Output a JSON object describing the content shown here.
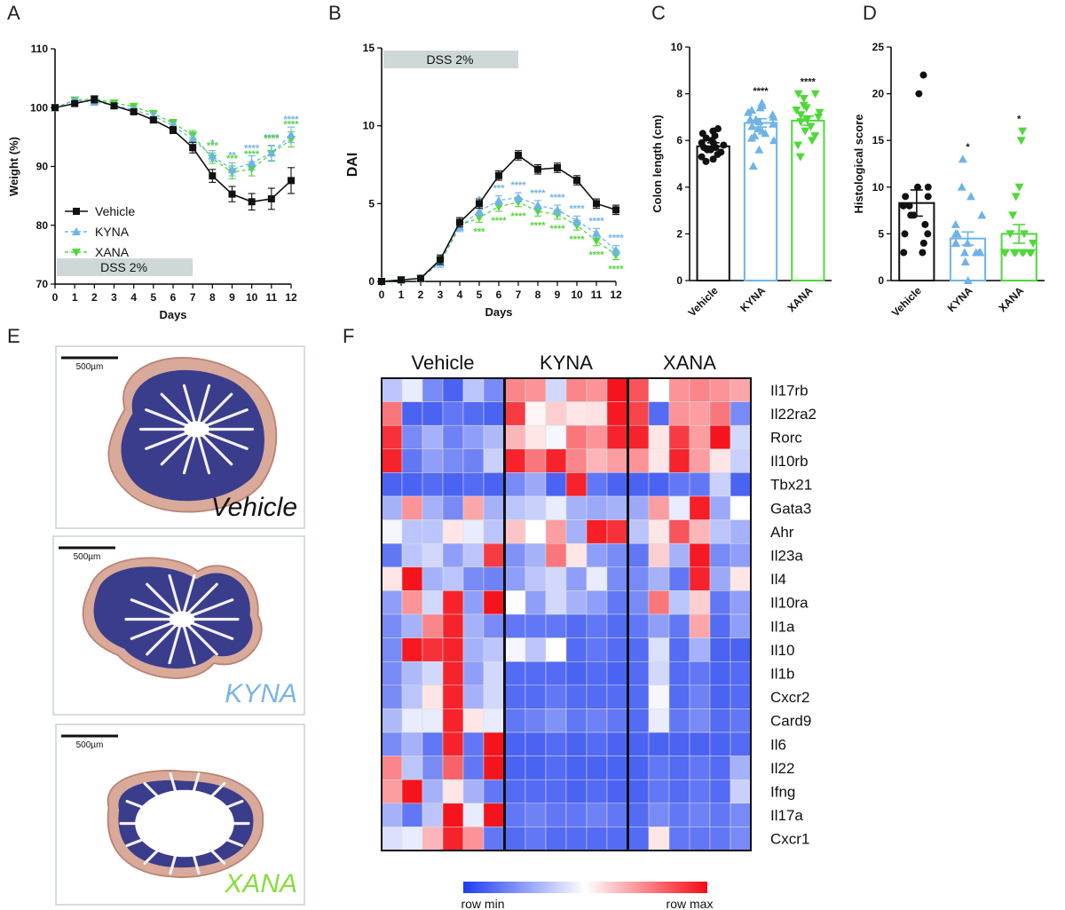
{
  "panel_labels": [
    "A",
    "B",
    "C",
    "D",
    "E",
    "F"
  ],
  "colors": {
    "vehicle": "#111111",
    "kyna": "#6fb3e8",
    "xana": "#4fd83a",
    "dss_bar": "#cfd8d8"
  },
  "chart_data": [
    {
      "panel": "A",
      "type": "line",
      "xlabel": "Days",
      "ylabel": "Weight (%)",
      "xlim": [
        0,
        12
      ],
      "ylim": [
        70,
        110
      ],
      "x_ticks": [
        0,
        1,
        2,
        3,
        4,
        5,
        6,
        7,
        8,
        9,
        10,
        11,
        12
      ],
      "y_ticks": [
        70,
        80,
        90,
        100,
        110
      ],
      "dss_label": "DSS 2%",
      "dss_range": [
        0,
        7
      ],
      "legend_position": "middle-left",
      "series": [
        {
          "name": "Vehicle",
          "marker": "square",
          "x": [
            0,
            1,
            2,
            3,
            4,
            5,
            6,
            7,
            8,
            9,
            10,
            11,
            12
          ],
          "y": [
            100,
            100.7,
            101.4,
            100.3,
            99.3,
            97.9,
            96.2,
            93.2,
            88.4,
            85.3,
            84.0,
            84.5,
            87.6
          ],
          "err": [
            0.3,
            0.4,
            0.6,
            0.4,
            0.4,
            0.5,
            0.6,
            0.9,
            1.1,
            1.3,
            1.4,
            1.8,
            2.2
          ]
        },
        {
          "name": "KYNA",
          "marker": "triangle-up",
          "x": [
            0,
            1,
            2,
            3,
            4,
            5,
            6,
            7,
            8,
            9,
            10,
            11,
            12
          ],
          "y": [
            100,
            101.2,
            101.0,
            100.4,
            99.6,
            98.6,
            96.9,
            94.6,
            91.8,
            89.5,
            90.6,
            92.3,
            95.4
          ],
          "err": [
            0.3,
            0.4,
            0.6,
            0.4,
            0.5,
            0.5,
            0.6,
            0.8,
            0.9,
            1.1,
            1.2,
            1.3,
            1.3
          ]
        },
        {
          "name": "XANA",
          "marker": "triangle-down",
          "x": [
            0,
            1,
            2,
            3,
            4,
            5,
            6,
            7,
            8,
            9,
            10,
            11,
            12
          ],
          "y": [
            100,
            101.3,
            101.5,
            100.8,
            100.2,
            99.0,
            97.4,
            95.3,
            91.4,
            89.0,
            89.6,
            92.2,
            94.6
          ],
          "err": [
            0.3,
            0.4,
            0.5,
            0.4,
            0.5,
            0.5,
            0.6,
            0.8,
            0.9,
            1.1,
            1.2,
            1.3,
            1.3
          ]
        }
      ],
      "significance": [
        {
          "series": "KYNA",
          "x": 8,
          "label": "*"
        },
        {
          "series": "KYNA",
          "x": 9,
          "label": "**"
        },
        {
          "series": "KYNA",
          "x": 10,
          "label": "****"
        },
        {
          "series": "KYNA",
          "x": 11,
          "label": "****"
        },
        {
          "series": "KYNA",
          "x": 12,
          "label": "****"
        },
        {
          "series": "XANA",
          "x": 8,
          "label": "***"
        },
        {
          "series": "XANA",
          "x": 9,
          "label": "***"
        },
        {
          "series": "XANA",
          "x": 10,
          "label": "****"
        },
        {
          "series": "XANA",
          "x": 11,
          "label": "****"
        },
        {
          "series": "XANA",
          "x": 12,
          "label": "****"
        }
      ]
    },
    {
      "panel": "B",
      "type": "line",
      "xlabel": "Days",
      "ylabel": "DAI",
      "xlim": [
        0,
        12
      ],
      "ylim": [
        0,
        15
      ],
      "x_ticks": [
        0,
        1,
        2,
        3,
        4,
        5,
        6,
        7,
        8,
        9,
        10,
        11,
        12
      ],
      "y_ticks": [
        0,
        5,
        10,
        15
      ],
      "dss_label": "DSS 2%",
      "dss_range": [
        0,
        7
      ],
      "series": [
        {
          "name": "Vehicle",
          "marker": "square",
          "x": [
            0,
            1,
            2,
            3,
            4,
            5,
            6,
            7,
            8,
            9,
            10,
            11,
            12
          ],
          "y": [
            0,
            0.1,
            0.2,
            1.4,
            3.8,
            5.0,
            6.8,
            8.1,
            7.2,
            7.3,
            6.5,
            5.0,
            4.6
          ],
          "err": [
            0,
            0.05,
            0.1,
            0.3,
            0.3,
            0.3,
            0.3,
            0.3,
            0.3,
            0.3,
            0.3,
            0.3,
            0.3
          ]
        },
        {
          "name": "KYNA",
          "marker": "triangle-up",
          "x": [
            0,
            1,
            2,
            3,
            4,
            5,
            6,
            7,
            8,
            9,
            10,
            11,
            12
          ],
          "y": [
            0,
            0.1,
            0.2,
            1.2,
            3.5,
            4.5,
            5.2,
            5.4,
            4.9,
            4.6,
            3.9,
            3.1,
            2.0
          ],
          "err": [
            0,
            0.05,
            0.1,
            0.3,
            0.3,
            0.3,
            0.3,
            0.3,
            0.3,
            0.3,
            0.3,
            0.3,
            0.3
          ]
        },
        {
          "name": "XANA",
          "marker": "triangle-down",
          "x": [
            0,
            1,
            2,
            3,
            4,
            5,
            6,
            7,
            8,
            9,
            10,
            11,
            12
          ],
          "y": [
            0,
            0.1,
            0.2,
            1.3,
            3.6,
            4.1,
            4.8,
            5.1,
            4.5,
            4.3,
            3.6,
            2.6,
            1.7
          ],
          "err": [
            0,
            0.05,
            0.1,
            0.3,
            0.3,
            0.3,
            0.3,
            0.3,
            0.3,
            0.3,
            0.3,
            0.3,
            0.3
          ]
        }
      ],
      "significance": [
        {
          "series": "KYNA",
          "x": 5,
          "label": "*"
        },
        {
          "series": "KYNA",
          "x": 6,
          "label": "***"
        },
        {
          "series": "KYNA",
          "x": 7,
          "label": "****"
        },
        {
          "series": "KYNA",
          "x": 8,
          "label": "****"
        },
        {
          "series": "KYNA",
          "x": 9,
          "label": "****"
        },
        {
          "series": "KYNA",
          "x": 10,
          "label": "****"
        },
        {
          "series": "KYNA",
          "x": 11,
          "label": "****"
        },
        {
          "series": "KYNA",
          "x": 12,
          "label": "****"
        },
        {
          "series": "XANA",
          "x": 5,
          "label": "***"
        },
        {
          "series": "XANA",
          "x": 6,
          "label": "****"
        },
        {
          "series": "XANA",
          "x": 7,
          "label": "****"
        },
        {
          "series": "XANA",
          "x": 8,
          "label": "****"
        },
        {
          "series": "XANA",
          "x": 9,
          "label": "****"
        },
        {
          "series": "XANA",
          "x": 10,
          "label": "****"
        },
        {
          "series": "XANA",
          "x": 11,
          "label": "****"
        },
        {
          "series": "XANA",
          "x": 12,
          "label": "****"
        }
      ]
    },
    {
      "panel": "C",
      "type": "bar",
      "ylabel": "Colon length (cm)",
      "ylim": [
        0,
        10
      ],
      "y_ticks": [
        0,
        2,
        4,
        6,
        8,
        10
      ],
      "categories": [
        "Vehicle",
        "KYNA",
        "XANA"
      ],
      "values": [
        5.75,
        6.75,
        6.85
      ],
      "err": [
        0.15,
        0.18,
        0.2
      ],
      "significance": [
        "",
        "****",
        "****"
      ],
      "points": [
        [
          6.4,
          6.2,
          6.3,
          6.1,
          6.0,
          5.9,
          5.9,
          5.8,
          5.7,
          5.6,
          5.6,
          5.5,
          5.4,
          5.3,
          5.2,
          5.1,
          6.5,
          5.7
        ],
        [
          7.5,
          7.4,
          7.3,
          7.2,
          7.1,
          7.0,
          6.9,
          6.8,
          6.7,
          6.6,
          6.5,
          6.4,
          6.3,
          6.2,
          6.1,
          6.0,
          5.6,
          4.9,
          7.6,
          6.9
        ],
        [
          8.0,
          8.0,
          7.8,
          7.5,
          7.3,
          7.2,
          7.1,
          7.0,
          6.9,
          6.8,
          6.6,
          6.4,
          6.2,
          6.0,
          5.8,
          5.3,
          7.4
        ]
      ]
    },
    {
      "panel": "D",
      "type": "bar",
      "ylabel": "Histological score",
      "ylim": [
        0,
        25
      ],
      "y_ticks": [
        0,
        5,
        10,
        15,
        20,
        25
      ],
      "categories": [
        "Vehicle",
        "KYNA",
        "XANA"
      ],
      "values": [
        8.3,
        4.5,
        5.0
      ],
      "err": [
        1.4,
        0.7,
        1.0
      ],
      "significance": [
        "",
        "*",
        "*"
      ],
      "points": [
        [
          22,
          20,
          10,
          10,
          9,
          9,
          8,
          8,
          7,
          7,
          6,
          5,
          5,
          4,
          3,
          3
        ],
        [
          13,
          10,
          9,
          7,
          6,
          5,
          5,
          4,
          4,
          4,
          3,
          3,
          3,
          3,
          3,
          2,
          0
        ],
        [
          16,
          15,
          10,
          9,
          7,
          5,
          5,
          4,
          3,
          3,
          3,
          3,
          3,
          3,
          3,
          3
        ]
      ]
    },
    {
      "panel": "F",
      "type": "heatmap",
      "groups": [
        "Vehicle",
        "KYNA",
        "XANA"
      ],
      "columns_per_group": 6,
      "genes": [
        "Il17rb",
        "Il22ra2",
        "Rorc",
        "Il10rb",
        "Tbx21",
        "Gata3",
        "Ahr",
        "Il23a",
        "Il4",
        "Il10ra",
        "Il1a",
        "Il10",
        "Il1b",
        "Cxcr2",
        "Card9",
        "Il6",
        "Il22",
        "Ifng",
        "Il17a",
        "Cxcr1"
      ],
      "scale_min_label": "row min",
      "scale_max_label": "row max",
      "values": [
        [
          0.35,
          0.45,
          0.2,
          0.1,
          0.35,
          0.2,
          0.75,
          0.72,
          0.4,
          0.75,
          0.72,
          0.98,
          0.85,
          0.5,
          0.72,
          0.75,
          0.72,
          0.68
        ],
        [
          0.78,
          0.1,
          0.1,
          0.15,
          0.12,
          0.1,
          0.9,
          0.52,
          0.6,
          0.55,
          0.56,
          0.97,
          0.88,
          0.12,
          0.72,
          0.7,
          0.78,
          0.2
        ],
        [
          0.92,
          0.2,
          0.3,
          0.18,
          0.25,
          0.32,
          0.65,
          0.55,
          0.48,
          0.78,
          0.72,
          0.95,
          0.95,
          0.55,
          0.9,
          0.7,
          0.98,
          0.4
        ],
        [
          0.95,
          0.15,
          0.25,
          0.2,
          0.18,
          0.38,
          0.95,
          0.78,
          0.95,
          0.75,
          0.65,
          0.7,
          0.72,
          0.55,
          0.95,
          0.7,
          0.55,
          0.38
        ],
        [
          0.1,
          0.1,
          0.12,
          0.1,
          0.12,
          0.1,
          0.2,
          0.28,
          0.1,
          0.95,
          0.15,
          0.1,
          0.1,
          0.1,
          0.15,
          0.15,
          0.38,
          0.1
        ],
        [
          0.3,
          0.72,
          0.3,
          0.2,
          0.68,
          0.3,
          0.35,
          0.38,
          0.45,
          0.3,
          0.28,
          0.3,
          0.28,
          0.7,
          0.45,
          0.96,
          0.28,
          0.5
        ],
        [
          0.48,
          0.35,
          0.35,
          0.55,
          0.45,
          0.35,
          0.62,
          0.5,
          0.7,
          0.3,
          0.96,
          0.92,
          0.35,
          0.55,
          0.85,
          0.65,
          0.35,
          0.3
        ],
        [
          0.15,
          0.35,
          0.4,
          0.25,
          0.35,
          0.9,
          0.22,
          0.3,
          0.78,
          0.55,
          0.25,
          0.2,
          0.15,
          0.6,
          0.3,
          0.97,
          0.2,
          0.25
        ],
        [
          0.55,
          0.98,
          0.3,
          0.35,
          0.2,
          0.18,
          0.25,
          0.35,
          0.4,
          0.25,
          0.45,
          0.2,
          0.2,
          0.3,
          0.15,
          0.95,
          0.28,
          0.55
        ],
        [
          0.25,
          0.72,
          0.4,
          0.95,
          0.25,
          0.98,
          0.5,
          0.25,
          0.4,
          0.3,
          0.25,
          0.15,
          0.2,
          0.78,
          0.35,
          0.6,
          0.15,
          0.25
        ],
        [
          0.2,
          0.3,
          0.75,
          0.95,
          0.3,
          0.2,
          0.15,
          0.15,
          0.15,
          0.12,
          0.15,
          0.12,
          0.15,
          0.25,
          0.15,
          0.68,
          0.12,
          0.25
        ],
        [
          0.2,
          0.97,
          0.92,
          0.95,
          0.3,
          0.35,
          0.48,
          0.35,
          0.5,
          0.12,
          0.15,
          0.12,
          0.12,
          0.42,
          0.12,
          0.3,
          0.1,
          0.1
        ],
        [
          0.2,
          0.32,
          0.4,
          0.95,
          0.25,
          0.4,
          0.12,
          0.12,
          0.12,
          0.1,
          0.12,
          0.1,
          0.12,
          0.4,
          0.12,
          0.15,
          0.1,
          0.12
        ],
        [
          0.2,
          0.35,
          0.55,
          0.95,
          0.3,
          0.4,
          0.12,
          0.12,
          0.15,
          0.12,
          0.12,
          0.12,
          0.12,
          0.48,
          0.12,
          0.18,
          0.1,
          0.12
        ],
        [
          0.32,
          0.45,
          0.45,
          0.95,
          0.55,
          0.45,
          0.15,
          0.18,
          0.22,
          0.15,
          0.18,
          0.15,
          0.12,
          0.45,
          0.15,
          0.2,
          0.12,
          0.15
        ],
        [
          0.2,
          0.3,
          0.15,
          0.95,
          0.15,
          0.98,
          0.1,
          0.1,
          0.12,
          0.1,
          0.12,
          0.1,
          0.1,
          0.1,
          0.1,
          0.1,
          0.1,
          0.12
        ],
        [
          0.75,
          0.35,
          0.2,
          0.82,
          0.15,
          0.98,
          0.1,
          0.1,
          0.12,
          0.1,
          0.1,
          0.1,
          0.1,
          0.15,
          0.12,
          0.15,
          0.12,
          0.3
        ],
        [
          0.7,
          0.98,
          0.3,
          0.55,
          0.3,
          0.15,
          0.12,
          0.12,
          0.12,
          0.1,
          0.12,
          0.1,
          0.1,
          0.15,
          0.12,
          0.15,
          0.12,
          0.38
        ],
        [
          0.3,
          0.15,
          0.35,
          0.98,
          0.45,
          0.98,
          0.15,
          0.18,
          0.15,
          0.15,
          0.18,
          0.15,
          0.12,
          0.2,
          0.15,
          0.18,
          0.15,
          0.2
        ],
        [
          0.42,
          0.45,
          0.65,
          0.95,
          0.72,
          0.15,
          0.12,
          0.15,
          0.12,
          0.12,
          0.12,
          0.12,
          0.12,
          0.55,
          0.15,
          0.15,
          0.15,
          0.2
        ]
      ]
    }
  ],
  "histology": [
    {
      "label": "Vehicle",
      "color": "#111111",
      "scale_bar": "500µm"
    },
    {
      "label": "KYNA",
      "color": "#7ab4e8",
      "scale_bar": "500µm"
    },
    {
      "label": "XANA",
      "color": "#86dd3c",
      "scale_bar": "500µm"
    }
  ]
}
